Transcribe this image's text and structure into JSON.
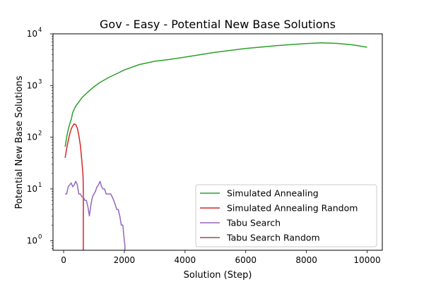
{
  "chart_data": {
    "type": "line",
    "title": "Gov - Easy - Potential New Base Solutions",
    "xlabel": "Solution (Step)",
    "ylabel": "Potential New Base Solutions",
    "yscale": "log",
    "xlim": [
      -350,
      10500
    ],
    "ylim": [
      0.65,
      10000
    ],
    "x_ticks": [
      0,
      2000,
      4000,
      6000,
      8000,
      10000
    ],
    "y_ticks": [
      {
        "value": 1,
        "base": "10",
        "exp": "0"
      },
      {
        "value": 10,
        "base": "10",
        "exp": "1"
      },
      {
        "value": 100,
        "base": "10",
        "exp": "2"
      },
      {
        "value": 1000,
        "base": "10",
        "exp": "3"
      },
      {
        "value": 10000,
        "base": "10",
        "exp": "4"
      }
    ],
    "legend_position": "lower-right",
    "series": [
      {
        "name": "Simulated Annealing",
        "color": "#2ca02c",
        "x": [
          50,
          100,
          150,
          200,
          250,
          300,
          400,
          500,
          600,
          800,
          1000,
          1200,
          1500,
          1800,
          2000,
          2500,
          3000,
          3500,
          4000,
          5000,
          6000,
          7000,
          8000,
          8500,
          9000,
          9500,
          10000
        ],
        "y": [
          65,
          100,
          140,
          180,
          220,
          300,
          400,
          480,
          580,
          750,
          950,
          1150,
          1450,
          1750,
          2000,
          2550,
          2950,
          3200,
          3550,
          4400,
          5200,
          5900,
          6500,
          6700,
          6550,
          6150,
          5500
        ]
      },
      {
        "name": "Simulated Annealing Random",
        "color": "#d62728",
        "x": [
          50,
          100,
          150,
          200,
          250,
          300,
          350,
          400,
          450,
          500,
          550,
          600,
          640,
          650,
          650
        ],
        "y": [
          40,
          60,
          85,
          115,
          145,
          165,
          182,
          175,
          150,
          110,
          70,
          35,
          18,
          10,
          0.65
        ]
      },
      {
        "name": "Tabu Search",
        "color": "#9467bd",
        "x": [
          50,
          100,
          150,
          200,
          250,
          300,
          350,
          400,
          450,
          500,
          550,
          600,
          650,
          700,
          750,
          800,
          850,
          900,
          950,
          1000,
          1050,
          1100,
          1150,
          1200,
          1250,
          1300,
          1350,
          1400,
          1450,
          1500,
          1550,
          1600,
          1650,
          1700,
          1750,
          1800,
          1850,
          1900,
          1950,
          2000,
          2020,
          2020
        ],
        "y": [
          8,
          8,
          11,
          12,
          13,
          11,
          12,
          14,
          12,
          8,
          8,
          7,
          7,
          6,
          6,
          4.5,
          3,
          5,
          7,
          8,
          9,
          11,
          12,
          14,
          11,
          10,
          10,
          8,
          8,
          8,
          8,
          7,
          6,
          5,
          4,
          4,
          3,
          2,
          2,
          1,
          0.8,
          0.65
        ]
      },
      {
        "name": "Tabu Search Random",
        "color": "#8c564b",
        "x": [],
        "y": []
      }
    ]
  }
}
